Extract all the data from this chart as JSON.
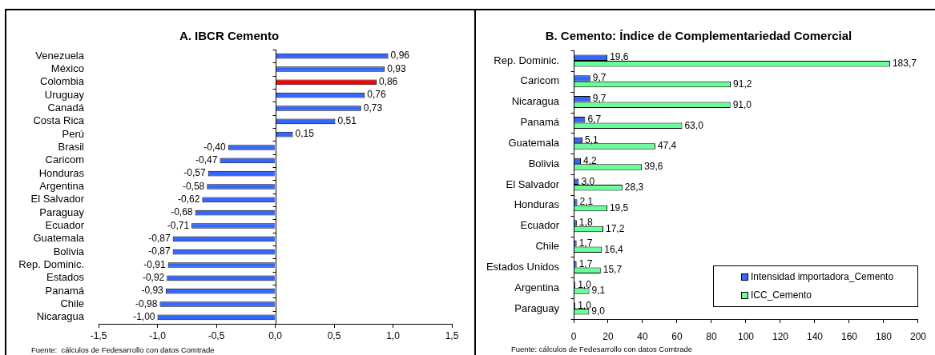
{
  "chart_data": [
    {
      "type": "bar",
      "orientation": "horizontal",
      "title": "A. IBCR Cemento",
      "categories": [
        "Venezuela",
        "México",
        "Colombia",
        "Uruguay",
        "Canadá",
        "Costa Rica",
        "Perú",
        "Brasil",
        "Caricom",
        "Honduras",
        "Argentina",
        "El Salvador",
        "Paraguay",
        "Ecuador",
        "Guatemala",
        "Bolivia",
        "Rep. Dominic.",
        "Estados",
        "Panamá",
        "Chile",
        "Nicaragua"
      ],
      "values": [
        0.96,
        0.93,
        0.86,
        0.76,
        0.73,
        0.51,
        0.15,
        -0.4,
        -0.47,
        -0.57,
        -0.58,
        -0.62,
        -0.68,
        -0.71,
        -0.87,
        -0.87,
        -0.91,
        -0.92,
        -0.93,
        -0.98,
        -1.0
      ],
      "colors": [
        "#3366ff",
        "#3366ff",
        "#ff0000",
        "#3366ff",
        "#3366ff",
        "#3366ff",
        "#3366ff",
        "#3366ff",
        "#3366ff",
        "#3366ff",
        "#3366ff",
        "#3366ff",
        "#3366ff",
        "#3366ff",
        "#3366ff",
        "#3366ff",
        "#3366ff",
        "#3366ff",
        "#3366ff",
        "#3366ff",
        "#3366ff"
      ],
      "value_labels": [
        "0,96",
        "0,93",
        "0,86",
        "0,76",
        "0,73",
        "0,51",
        "0,15",
        "-0,40",
        "-0,47",
        "-0,57",
        "-0,58",
        "-0,62",
        "-0,68",
        "-0,71",
        "-0,87",
        "-0,87",
        "-0,91",
        "-0,92",
        "-0,93",
        "-0,98",
        "-1,00"
      ],
      "xlim": [
        -1.5,
        1.5
      ],
      "xticks": [
        {
          "value": -1.5,
          "label": "-1,5"
        },
        {
          "value": -1.0,
          "label": "-1,0"
        },
        {
          "value": -0.5,
          "label": "-0,5"
        },
        {
          "value": 0,
          "label": "0,0"
        },
        {
          "value": 0.5,
          "label": "0,5"
        },
        {
          "value": 1.0,
          "label": "1,0"
        },
        {
          "value": 1.5,
          "label": "1,5"
        }
      ],
      "annotations": [
        "Fuente:  cálculos de Fedesarrollo con datos Comtrade"
      ]
    },
    {
      "type": "bar",
      "orientation": "horizontal",
      "title": "B. Cemento: Índice de Complementariedad Comercial",
      "categories": [
        "Rep. Dominic.",
        "Caricom",
        "Nicaragua",
        "Panamá",
        "Guatemala",
        "Bolivia",
        "El Salvador",
        "Honduras",
        "Ecuador",
        "Chile",
        "Estados Unidos",
        "Argentina",
        "Paraguay"
      ],
      "series": [
        {
          "name": "Intensidad importadora_Cemento",
          "color": "#3366ff",
          "values": [
            19.6,
            9.7,
            9.7,
            6.7,
            5.1,
            4.2,
            3.0,
            2.1,
            1.8,
            1.7,
            1.7,
            1.0,
            1.0
          ],
          "value_labels": [
            "19,6",
            "9,7",
            "9,7",
            "6,7",
            "5,1",
            "4,2",
            "3,0",
            "2,1",
            "1,8",
            "1,7",
            "1,7",
            "1,0",
            "1,0"
          ]
        },
        {
          "name": "ICC_Cemento",
          "color": "#66ff99",
          "values": [
            183.7,
            91.2,
            91.0,
            63.0,
            47.4,
            39.6,
            28.3,
            19.5,
            17.2,
            16.4,
            15.7,
            9.1,
            9.0
          ],
          "value_labels": [
            "183,7",
            "91,2",
            "91,0",
            "63,0",
            "47,4",
            "39,6",
            "28,3",
            "19,5",
            "17,2",
            "16,4",
            "15,7",
            "9,1",
            "9,0"
          ]
        }
      ],
      "xlim": [
        0,
        200
      ],
      "xticks": [
        0,
        20,
        40,
        60,
        80,
        100,
        120,
        140,
        160,
        180,
        200
      ],
      "legend": "bottom right",
      "annotations": [
        "Fuente: cálculos de Fedesarrollo con datos Comtrade"
      ]
    }
  ]
}
